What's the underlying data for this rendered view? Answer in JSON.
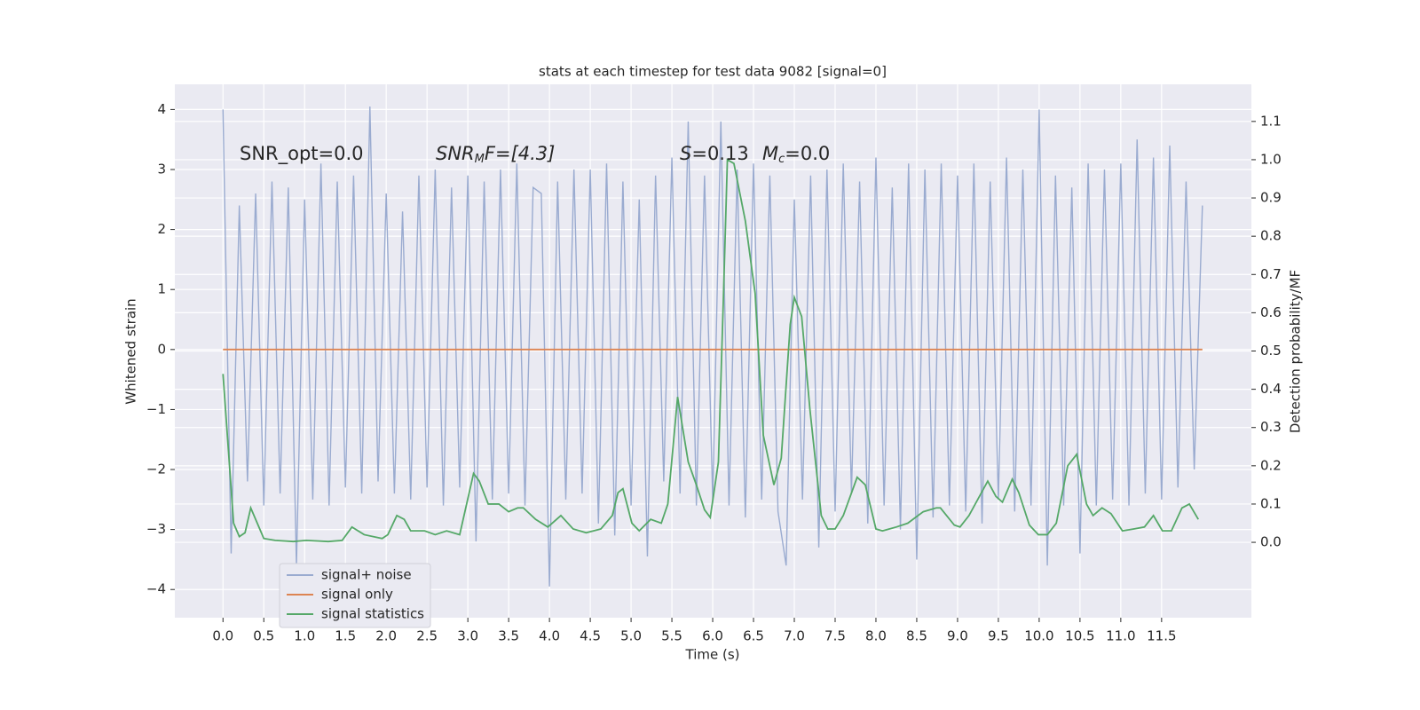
{
  "chart_data": {
    "type": "line",
    "title": "stats at each timestep for test data 9082 [signal=0]",
    "xlabel": "Time (s)",
    "ylabel": "Whitened strain",
    "y2label": "Detection probability/MF",
    "annotations": [
      {
        "text": "SNR_opt=0.0"
      },
      {
        "main": "SNR",
        "sub": "M",
        "rest": "F=[4.3]"
      },
      {
        "main": "S",
        "rest": "=0.13"
      },
      {
        "main": "M",
        "sub": "c",
        "rest": "=0.0"
      }
    ],
    "xlim": [
      -0.59,
      12.6
    ],
    "ylim": [
      -4.47,
      4.42
    ],
    "y2lim": [
      -0.197,
      1.197
    ],
    "xticks": [
      {
        "value": 0,
        "label": "0.0"
      },
      0.5,
      {
        "value": 1,
        "label": "1.0"
      },
      1.5,
      {
        "value": 2,
        "label": "2.0"
      },
      2.5,
      {
        "value": 3,
        "label": "3.0"
      },
      3.5,
      {
        "value": 4,
        "label": "4.0"
      },
      4.5,
      {
        "value": 5,
        "label": "5.0"
      },
      5.5,
      {
        "value": 6,
        "label": "6.0"
      },
      6.5,
      {
        "value": 7,
        "label": "7.0"
      },
      7.5,
      {
        "value": 8,
        "label": "8.0"
      },
      8.5,
      {
        "value": 9,
        "label": "9.0"
      },
      9.5,
      {
        "value": 10,
        "label": "10.0"
      },
      10.5,
      {
        "value": 11,
        "label": "11.0"
      },
      11.5
    ],
    "yticks": [
      {
        "value": -4,
        "label": "−4"
      },
      {
        "value": -3,
        "label": "−3"
      },
      {
        "value": -2,
        "label": "−2"
      },
      {
        "value": -1,
        "label": "−1"
      },
      0,
      1,
      2,
      3,
      4
    ],
    "y2ticks": [
      {
        "value": 0,
        "label": "0.0"
      },
      0.1,
      0.2,
      0.3,
      0.4,
      0.5,
      0.6,
      0.7,
      0.8,
      0.9,
      {
        "value": 1,
        "label": "1.0"
      },
      1.1
    ],
    "grid": true,
    "legend": "lower left",
    "series": [
      {
        "name": "signal+ noise",
        "color": "#9aabd0",
        "x": [
          0,
          0.1,
          0.2,
          0.3,
          0.4,
          0.5,
          0.6,
          0.7,
          0.8,
          0.9,
          1,
          1.1,
          1.2,
          1.3,
          1.4,
          1.5,
          1.6,
          1.7,
          1.8,
          1.9,
          2,
          2.1,
          2.2,
          2.3,
          2.4,
          2.5,
          2.6,
          2.7,
          2.8,
          2.9,
          3,
          3.1,
          3.2,
          3.3,
          3.4,
          3.5,
          3.6,
          3.7,
          3.8,
          3.9,
          4,
          4.1,
          4.2,
          4.3,
          4.4,
          4.5,
          4.6,
          4.7,
          4.8,
          4.9,
          5,
          5.1,
          5.2,
          5.3,
          5.4,
          5.5,
          5.6,
          5.7,
          5.8,
          5.9,
          6,
          6.1,
          6.2,
          6.3,
          6.4,
          6.5,
          6.6,
          6.7,
          6.8,
          6.9,
          7,
          7.1,
          7.2,
          7.3,
          7.4,
          7.5,
          7.6,
          7.7,
          7.8,
          7.9,
          8,
          8.1,
          8.2,
          8.3,
          8.4,
          8.5,
          8.6,
          8.7,
          8.8,
          8.9,
          9,
          9.1,
          9.2,
          9.3,
          9.4,
          9.5,
          9.6,
          9.7,
          9.8,
          9.9,
          10,
          10.1,
          10.2,
          10.3,
          10.4,
          10.5,
          10.6,
          10.7,
          10.8,
          10.9,
          11,
          11.1,
          11.2,
          11.3,
          11.4,
          11.5,
          11.6,
          11.7,
          11.8,
          11.9,
          12
        ],
        "values": [
          4.0,
          -3.4,
          2.4,
          -2.2,
          2.6,
          -2.6,
          2.8,
          -2.4,
          2.7,
          -3.6,
          2.5,
          -2.5,
          3.1,
          -2.6,
          2.8,
          -2.3,
          2.9,
          -2.4,
          4.05,
          -2.2,
          2.6,
          -2.4,
          2.3,
          -2.5,
          2.9,
          -2.3,
          3.0,
          -2.6,
          2.7,
          -2.3,
          2.9,
          -3.2,
          2.8,
          -2.5,
          3.0,
          -2.4,
          3.1,
          -2.6,
          2.7,
          2.6,
          -3.95,
          2.8,
          -2.5,
          3.0,
          -2.4,
          3.0,
          -2.9,
          3.1,
          -3.1,
          2.8,
          -2.6,
          2.5,
          -3.45,
          2.9,
          -2.2,
          3.2,
          -2.4,
          3.8,
          -2.6,
          2.9,
          -2.5,
          3.8,
          -2.6,
          3.0,
          -2.8,
          3.1,
          -2.5,
          2.9,
          -2.7,
          -3.6,
          2.5,
          -2.5,
          2.9,
          -3.3,
          3.0,
          -2.7,
          3.1,
          -2.4,
          2.8,
          -2.9,
          3.2,
          -2.6,
          2.7,
          -3.0,
          3.1,
          -3.5,
          3.0,
          -2.8,
          3.1,
          -2.6,
          2.9,
          -2.7,
          3.1,
          -2.9,
          2.8,
          -2.5,
          3.2,
          -2.7,
          3.0,
          -2.6,
          4.0,
          -3.6,
          2.9,
          -2.6,
          2.7,
          -3.4,
          3.1,
          -2.6,
          3.0,
          -2.5,
          3.1,
          -2.6,
          3.5,
          -2.4,
          3.2,
          -2.5,
          3.4,
          -2.3,
          2.8,
          -2.0,
          2.4
        ]
      },
      {
        "name": "signal only",
        "color": "#dd8452",
        "x": [
          0,
          12
        ],
        "values": [
          0,
          0
        ]
      },
      {
        "name": "signal statistics",
        "color": "#55a868",
        "axis": "y2",
        "x": [
          0,
          0.13,
          0.2,
          0.27,
          0.34,
          0.42,
          0.5,
          0.64,
          0.86,
          1.02,
          1.29,
          1.46,
          1.58,
          1.73,
          1.95,
          2.02,
          2.13,
          2.22,
          2.3,
          2.47,
          2.6,
          2.74,
          2.9,
          3.07,
          3.14,
          3.25,
          3.38,
          3.5,
          3.61,
          3.68,
          3.83,
          3.98,
          4.14,
          4.29,
          4.45,
          4.63,
          4.77,
          4.84,
          4.9,
          5.01,
          5.1,
          5.24,
          5.37,
          5.45,
          5.57,
          5.7,
          5.8,
          5.9,
          5.97,
          6.07,
          6.13,
          6.18,
          6.26,
          6.4,
          6.52,
          6.62,
          6.75,
          6.84,
          6.95,
          7.0,
          7.09,
          7.19,
          7.33,
          7.41,
          7.5,
          7.6,
          7.77,
          7.87,
          8.0,
          8.08,
          8.25,
          8.39,
          8.58,
          8.74,
          8.79,
          8.96,
          9.03,
          9.14,
          9.37,
          9.47,
          9.55,
          9.67,
          9.75,
          9.88,
          9.99,
          10.1,
          10.21,
          10.35,
          10.46,
          10.58,
          10.66,
          10.77,
          10.88,
          11.02,
          11.16,
          11.29,
          11.4,
          11.51,
          11.62,
          11.75,
          11.84,
          11.95
        ],
        "values": [
          0.44,
          0.05,
          0.015,
          0.025,
          0.09,
          0.05,
          0.01,
          0.005,
          0.002,
          0.005,
          0.002,
          0.005,
          0.04,
          0.02,
          0.01,
          0.02,
          0.07,
          0.06,
          0.03,
          0.03,
          0.02,
          0.03,
          0.02,
          0.18,
          0.16,
          0.1,
          0.1,
          0.08,
          0.09,
          0.09,
          0.06,
          0.04,
          0.07,
          0.035,
          0.025,
          0.035,
          0.07,
          0.13,
          0.14,
          0.05,
          0.03,
          0.06,
          0.05,
          0.1,
          0.38,
          0.21,
          0.15,
          0.085,
          0.065,
          0.21,
          0.63,
          1.0,
          0.99,
          0.84,
          0.65,
          0.28,
          0.15,
          0.22,
          0.57,
          0.64,
          0.59,
          0.35,
          0.07,
          0.035,
          0.035,
          0.07,
          0.17,
          0.15,
          0.035,
          0.03,
          0.04,
          0.05,
          0.08,
          0.09,
          0.09,
          0.045,
          0.04,
          0.07,
          0.16,
          0.12,
          0.105,
          0.165,
          0.13,
          0.045,
          0.02,
          0.02,
          0.05,
          0.2,
          0.23,
          0.1,
          0.07,
          0.09,
          0.075,
          0.03,
          0.035,
          0.04,
          0.07,
          0.03,
          0.03,
          0.09,
          0.1,
          0.06
        ]
      }
    ]
  }
}
